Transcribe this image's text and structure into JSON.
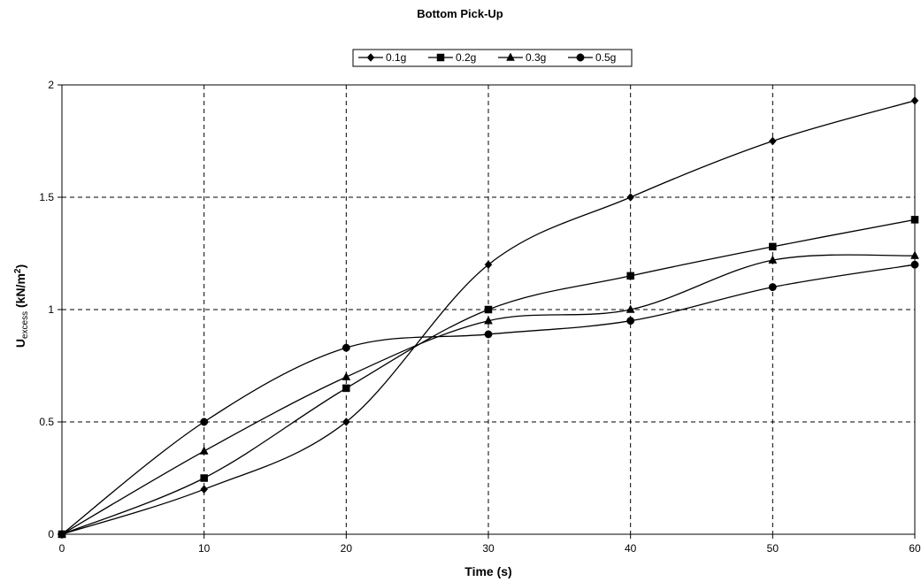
{
  "chart_data": {
    "type": "line",
    "title": "Bottom Pick-Up",
    "xlabel": "Time (s)",
    "ylabel": {
      "main": "U",
      "subscript": "excess",
      "unit_prefix": " (kN/m",
      "unit_superscript": "2",
      "unit_suffix": ")"
    },
    "x": [
      0,
      10,
      20,
      30,
      40,
      50,
      60
    ],
    "xlim": [
      0,
      60
    ],
    "ylim": [
      0,
      2
    ],
    "xticks": [
      "0",
      "10",
      "20",
      "30",
      "40",
      "50",
      "60"
    ],
    "yticks": [
      "0",
      "0.5",
      "1",
      "1.5",
      "2"
    ],
    "grid": true,
    "legend_position": "top-center",
    "series": [
      {
        "name": "0.1g",
        "marker": "diamond",
        "values": [
          0,
          0.2,
          0.5,
          1.2,
          1.5,
          1.75,
          1.93
        ]
      },
      {
        "name": "0.2g",
        "marker": "square",
        "values": [
          0,
          0.25,
          0.65,
          1.0,
          1.15,
          1.28,
          1.4
        ]
      },
      {
        "name": "0.3g",
        "marker": "triangle",
        "values": [
          0,
          0.37,
          0.7,
          0.95,
          1.0,
          1.22,
          1.24
        ]
      },
      {
        "name": "0.5g",
        "marker": "circle",
        "values": [
          0,
          0.5,
          0.83,
          0.89,
          0.95,
          1.1,
          1.2
        ]
      }
    ],
    "colors": {
      "line": "#000000",
      "grid": "#000000",
      "background": "#ffffff"
    }
  }
}
